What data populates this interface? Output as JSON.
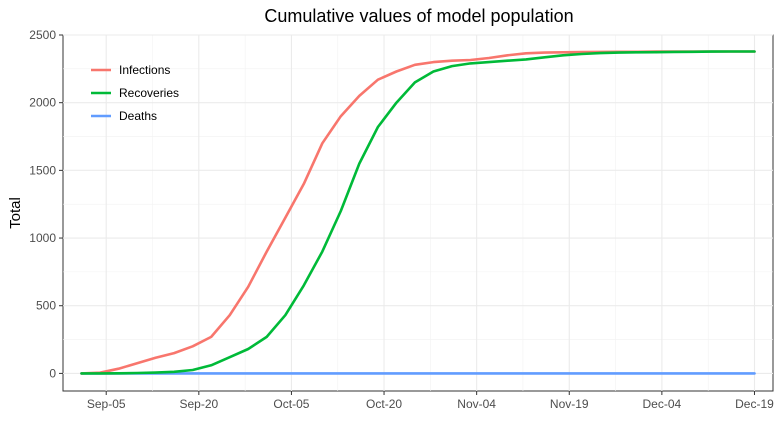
{
  "chart_data": {
    "type": "line",
    "title": "Cumulative values of model population",
    "xlabel": "",
    "ylabel": "Total",
    "x_ticks": [
      "Sep-05",
      "Sep-20",
      "Oct-05",
      "Oct-20",
      "Nov-04",
      "Nov-19",
      "Dec-04",
      "Dec-19"
    ],
    "y_ticks": [
      0,
      500,
      1000,
      1500,
      2000,
      2500
    ],
    "xlim": [
      "2020-08-29",
      "2020-12-22"
    ],
    "ylim": [
      -130,
      2500
    ],
    "grid": true,
    "legend_position": "top-left",
    "x": [
      "2020-09-01",
      "2020-09-04",
      "2020-09-07",
      "2020-09-10",
      "2020-09-13",
      "2020-09-16",
      "2020-09-19",
      "2020-09-22",
      "2020-09-25",
      "2020-09-28",
      "2020-10-01",
      "2020-10-04",
      "2020-10-07",
      "2020-10-10",
      "2020-10-13",
      "2020-10-16",
      "2020-10-19",
      "2020-10-22",
      "2020-10-25",
      "2020-10-28",
      "2020-10-31",
      "2020-11-03",
      "2020-11-06",
      "2020-11-09",
      "2020-11-12",
      "2020-11-15",
      "2020-11-18",
      "2020-11-21",
      "2020-11-24",
      "2020-11-27",
      "2020-11-30",
      "2020-12-03",
      "2020-12-06",
      "2020-12-09",
      "2020-12-12",
      "2020-12-15",
      "2020-12-18",
      "2020-12-19"
    ],
    "series": [
      {
        "name": "Infections",
        "color": "#F8766D",
        "values": [
          0,
          5,
          35,
          75,
          115,
          150,
          200,
          270,
          430,
          640,
          900,
          1150,
          1400,
          1700,
          1900,
          2050,
          2170,
          2230,
          2280,
          2300,
          2310,
          2315,
          2330,
          2350,
          2365,
          2370,
          2372,
          2374,
          2375,
          2376,
          2376,
          2377,
          2377,
          2377,
          2378,
          2378,
          2378,
          2378
        ]
      },
      {
        "name": "Recoveries",
        "color": "#00BA38",
        "values": [
          0,
          0,
          1,
          3,
          6,
          12,
          25,
          60,
          120,
          180,
          270,
          430,
          650,
          900,
          1200,
          1550,
          1820,
          2000,
          2150,
          2230,
          2270,
          2290,
          2300,
          2310,
          2320,
          2335,
          2350,
          2360,
          2366,
          2370,
          2372,
          2373,
          2375,
          2376,
          2377,
          2378,
          2378,
          2378
        ]
      },
      {
        "name": "Deaths",
        "color": "#619CFF",
        "values": [
          0,
          0,
          0,
          0,
          0,
          0,
          0,
          0,
          0,
          0,
          0,
          0,
          0,
          0,
          0,
          0,
          0,
          0,
          0,
          0,
          0,
          0,
          0,
          0,
          0,
          0,
          0,
          0,
          0,
          0,
          0,
          0,
          0,
          0,
          0,
          0,
          0,
          0
        ]
      }
    ]
  }
}
